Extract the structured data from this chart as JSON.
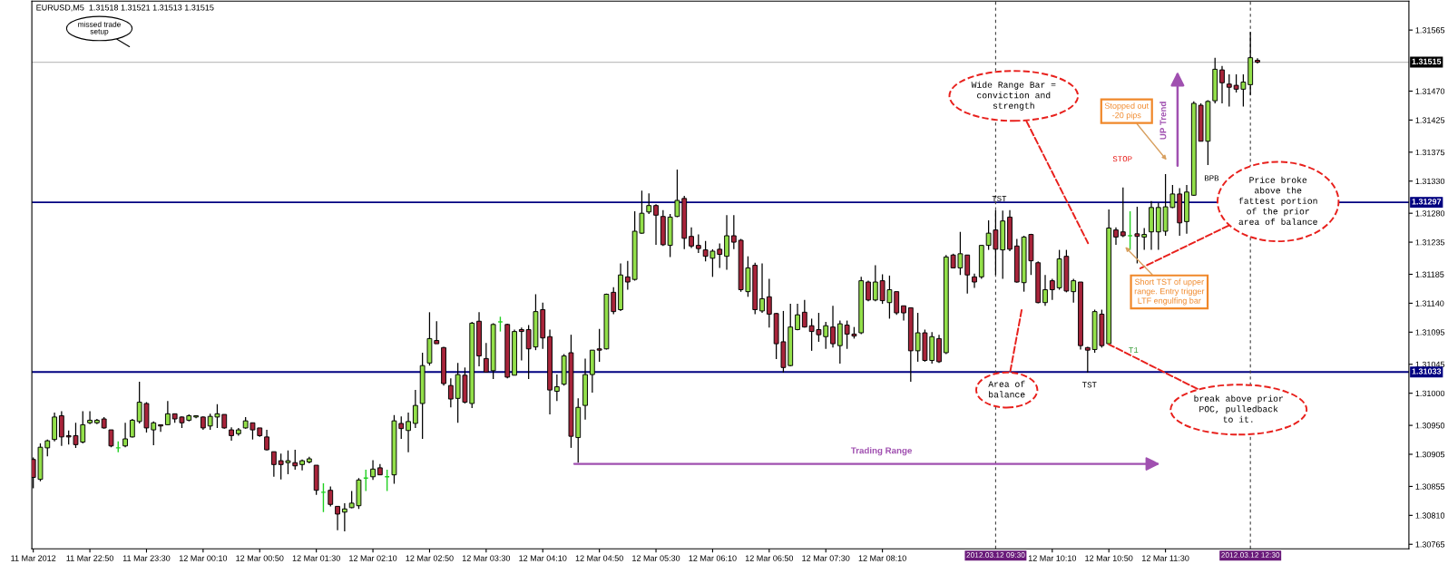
{
  "chart_data": {
    "type": "candlestick",
    "title": "EURUSD,M5  1.31518 1.31521 1.31513 1.31515",
    "x": [
      "2012-03-11T22:10",
      "2012-03-11T22:15",
      "2012-03-11T22:20",
      "2012-03-11T22:25",
      "2012-03-11T22:30",
      "2012-03-11T22:35",
      "2012-03-11T22:40",
      "2012-03-11T22:45",
      "2012-03-11T22:50",
      "2012-03-11T22:55",
      "2012-03-11T23:00",
      "2012-03-11T23:05",
      "2012-03-11T23:10",
      "2012-03-11T23:15",
      "2012-03-11T23:20",
      "2012-03-11T23:25",
      "2012-03-11T23:30",
      "2012-03-11T23:35",
      "2012-03-11T23:40",
      "2012-03-11T23:45",
      "2012-03-11T23:50",
      "2012-03-11T23:55",
      "2012-03-12T00:00",
      "2012-03-12T00:05",
      "2012-03-12T00:10",
      "2012-03-12T00:15",
      "2012-03-12T00:20",
      "2012-03-12T00:25",
      "2012-03-12T00:30",
      "2012-03-12T00:35",
      "2012-03-12T00:40",
      "2012-03-12T00:45",
      "2012-03-12T00:50",
      "2012-03-12T00:55",
      "2012-03-12T01:00",
      "2012-03-12T01:05",
      "2012-03-12T01:10",
      "2012-03-12T01:15",
      "2012-03-12T01:20",
      "2012-03-12T01:25",
      "2012-03-12T01:30",
      "2012-03-12T01:35",
      "2012-03-12T01:40",
      "2012-03-12T01:45",
      "2012-03-12T01:50",
      "2012-03-12T01:55",
      "2012-03-12T02:00",
      "2012-03-12T02:05",
      "2012-03-12T02:10",
      "2012-03-12T02:15",
      "2012-03-12T02:20",
      "2012-03-12T02:25",
      "2012-03-12T02:30",
      "2012-03-12T02:35",
      "2012-03-12T02:40",
      "2012-03-12T02:45",
      "2012-03-12T02:50",
      "2012-03-12T02:55",
      "2012-03-12T03:00",
      "2012-03-12T03:05",
      "2012-03-12T03:10",
      "2012-03-12T03:15",
      "2012-03-12T03:20",
      "2012-03-12T03:25",
      "2012-03-12T03:30",
      "2012-03-12T03:35",
      "2012-03-12T03:40",
      "2012-03-12T03:45",
      "2012-03-12T03:50",
      "2012-03-12T03:55",
      "2012-03-12T04:00",
      "2012-03-12T04:05",
      "2012-03-12T04:10",
      "2012-03-12T04:15",
      "2012-03-12T04:20",
      "2012-03-12T04:25",
      "2012-03-12T04:30",
      "2012-03-12T04:35",
      "2012-03-12T04:40",
      "2012-03-12T04:45",
      "2012-03-12T04:50",
      "2012-03-12T04:55",
      "2012-03-12T05:00",
      "2012-03-12T05:05",
      "2012-03-12T05:10",
      "2012-03-12T05:15",
      "2012-03-12T05:20",
      "2012-03-12T05:25",
      "2012-03-12T05:30",
      "2012-03-12T05:35",
      "2012-03-12T05:40",
      "2012-03-12T05:45",
      "2012-03-12T05:50",
      "2012-03-12T05:55",
      "2012-03-12T06:00",
      "2012-03-12T06:05",
      "2012-03-12T06:10",
      "2012-03-12T06:15",
      "2012-03-12T06:20",
      "2012-03-12T06:25",
      "2012-03-12T06:30",
      "2012-03-12T06:35",
      "2012-03-12T06:40",
      "2012-03-12T06:45",
      "2012-03-12T06:50",
      "2012-03-12T06:55",
      "2012-03-12T07:00",
      "2012-03-12T07:05",
      "2012-03-12T07:10",
      "2012-03-12T07:15",
      "2012-03-12T07:20",
      "2012-03-12T07:25",
      "2012-03-12T07:30",
      "2012-03-12T07:35",
      "2012-03-12T07:40",
      "2012-03-12T07:45",
      "2012-03-12T07:50",
      "2012-03-12T07:55",
      "2012-03-12T08:00",
      "2012-03-12T08:05",
      "2012-03-12T08:10",
      "2012-03-12T08:15",
      "2012-03-12T08:20",
      "2012-03-12T08:25",
      "2012-03-12T08:30",
      "2012-03-12T08:35",
      "2012-03-12T08:40",
      "2012-03-12T08:45",
      "2012-03-12T08:50",
      "2012-03-12T08:55",
      "2012-03-12T09:00",
      "2012-03-12T09:05",
      "2012-03-12T09:10",
      "2012-03-12T09:15",
      "2012-03-12T09:20",
      "2012-03-12T09:25",
      "2012-03-12T09:30",
      "2012-03-12T09:35",
      "2012-03-12T09:40",
      "2012-03-12T09:45",
      "2012-03-12T09:50",
      "2012-03-12T09:55",
      "2012-03-12T10:00",
      "2012-03-12T10:05",
      "2012-03-12T10:10",
      "2012-03-12T10:15",
      "2012-03-12T10:20",
      "2012-03-12T10:25",
      "2012-03-12T10:30",
      "2012-03-12T10:35",
      "2012-03-12T10:40",
      "2012-03-12T10:45",
      "2012-03-12T10:50",
      "2012-03-12T10:55",
      "2012-03-12T11:00",
      "2012-03-12T11:05",
      "2012-03-12T11:10",
      "2012-03-12T11:15",
      "2012-03-12T11:20",
      "2012-03-12T11:25",
      "2012-03-12T11:30",
      "2012-03-12T11:35",
      "2012-03-12T11:40",
      "2012-03-12T11:45",
      "2012-03-12T11:50",
      "2012-03-12T11:55",
      "2012-03-12T12:00",
      "2012-03-12T12:05",
      "2012-03-12T12:10",
      "2012-03-12T12:15",
      "2012-03-12T12:20",
      "2012-03-12T12:25",
      "2012-03-12T12:30",
      "2012-03-12T12:35"
    ],
    "ohlc": [
      [
        1.30897,
        1.309,
        1.30852,
        1.30869
      ],
      [
        1.30866,
        1.30922,
        1.30863,
        1.30916
      ],
      [
        1.30915,
        1.30928,
        1.30902,
        1.30926
      ],
      [
        1.30928,
        1.3097,
        1.30925,
        1.30963
      ],
      [
        1.30965,
        1.30972,
        1.30918,
        1.30932
      ],
      [
        1.30934,
        1.30942,
        1.3092,
        1.30932
      ],
      [
        1.30934,
        1.30954,
        1.30915,
        1.3092
      ],
      [
        1.30924,
        1.30972,
        1.30922,
        1.30951
      ],
      [
        1.30954,
        1.30972,
        1.30952,
        1.30958
      ],
      [
        1.30954,
        1.3096,
        1.30952,
        1.30958
      ],
      [
        1.3096,
        1.30963,
        1.30945,
        1.30946
      ],
      [
        1.30943,
        1.30943,
        1.30916,
        1.30918
      ],
      [
        1.30915,
        1.30925,
        1.30908,
        1.30915
      ],
      [
        1.30918,
        1.30954,
        1.30916,
        1.30929
      ],
      [
        1.30932,
        1.3096,
        1.30931,
        1.30958
      ],
      [
        1.30956,
        1.31018,
        1.30953,
        1.30986
      ],
      [
        1.30984,
        1.30986,
        1.30939,
        1.30946
      ],
      [
        1.30943,
        1.30956,
        1.30919,
        1.30954
      ],
      [
        1.30951,
        1.30951,
        1.3094,
        1.30949
      ],
      [
        1.30951,
        1.30988,
        1.3095,
        1.30968
      ],
      [
        1.30968,
        1.30968,
        1.30954,
        1.3096
      ],
      [
        1.30963,
        1.30964,
        1.30946,
        1.30954
      ],
      [
        1.30958,
        1.30967,
        1.30956,
        1.30965
      ],
      [
        1.30963,
        1.30965,
        1.30961,
        1.30965
      ],
      [
        1.30963,
        1.30964,
        1.30943,
        1.30946
      ],
      [
        1.30949,
        1.30968,
        1.30943,
        1.30964
      ],
      [
        1.30963,
        1.30983,
        1.30946,
        1.30968
      ],
      [
        1.30967,
        1.30967,
        1.30945,
        1.30946
      ],
      [
        1.30943,
        1.30947,
        1.30926,
        1.30934
      ],
      [
        1.30937,
        1.30946,
        1.30934,
        1.30943
      ],
      [
        1.30946,
        1.30963,
        1.30945,
        1.30957
      ],
      [
        1.30954,
        1.30954,
        1.30928,
        1.30943
      ],
      [
        1.30946,
        1.30946,
        1.30932,
        1.30934
      ],
      [
        1.30932,
        1.30943,
        1.30911,
        1.30912
      ],
      [
        1.30909,
        1.30909,
        1.3087,
        1.30889
      ],
      [
        1.30895,
        1.30906,
        1.30866,
        1.30889
      ],
      [
        1.30892,
        1.30911,
        1.30874,
        1.30895
      ],
      [
        1.30892,
        1.30912,
        1.30881,
        1.30887
      ],
      [
        1.30889,
        1.30897,
        1.3088,
        1.30895
      ],
      [
        1.30893,
        1.30901,
        1.30891,
        1.30898
      ],
      [
        1.30888,
        1.30888,
        1.30842,
        1.30849
      ],
      [
        1.30846,
        1.3086,
        1.30815,
        1.30846
      ],
      [
        1.30849,
        1.30855,
        1.30824,
        1.30827
      ],
      [
        1.30824,
        1.30824,
        1.30787,
        1.30812
      ],
      [
        1.30815,
        1.30829,
        1.30785,
        1.3082
      ],
      [
        1.30822,
        1.30848,
        1.30821,
        1.30829
      ],
      [
        1.30825,
        1.30868,
        1.3082,
        1.30865
      ],
      [
        1.30868,
        1.30881,
        1.30848,
        1.30868
      ],
      [
        1.3087,
        1.30896,
        1.30865,
        1.30882
      ],
      [
        1.30884,
        1.3089,
        1.30873,
        1.30873
      ],
      [
        1.3087,
        1.30881,
        1.30848,
        1.3087
      ],
      [
        1.30873,
        1.30966,
        1.30859,
        1.30957
      ],
      [
        1.30953,
        1.30964,
        1.30929,
        1.30945
      ],
      [
        1.30942,
        1.3097,
        1.30908,
        1.30956
      ],
      [
        1.30953,
        1.31005,
        1.30946,
        1.30981
      ],
      [
        1.30984,
        1.31063,
        1.30929,
        1.31043
      ],
      [
        1.31047,
        1.31126,
        1.31043,
        1.31085
      ],
      [
        1.31082,
        1.31112,
        1.31077,
        1.31077
      ],
      [
        1.31071,
        1.31072,
        1.31012,
        1.31015
      ],
      [
        1.31012,
        1.31023,
        1.30978,
        1.30991
      ],
      [
        1.30992,
        1.31047,
        1.30954,
        1.31029
      ],
      [
        1.31028,
        1.3104,
        1.30984,
        1.30986
      ],
      [
        1.30984,
        1.31111,
        1.30977,
        1.31109
      ],
      [
        1.31112,
        1.31126,
        1.31042,
        1.31058
      ],
      [
        1.31054,
        1.31078,
        1.31033,
        1.31033
      ],
      [
        1.31035,
        1.31109,
        1.31022,
        1.31107
      ],
      [
        1.31111,
        1.31119,
        1.31096,
        1.31111
      ],
      [
        1.31107,
        1.31108,
        1.31023,
        1.31025
      ],
      [
        1.31028,
        1.31099,
        1.31028,
        1.31096
      ],
      [
        1.31099,
        1.31102,
        1.31051,
        1.31096
      ],
      [
        1.31099,
        1.31106,
        1.31022,
        1.31069
      ],
      [
        1.31072,
        1.31154,
        1.31067,
        1.31127
      ],
      [
        1.3113,
        1.31141,
        1.31069,
        1.31086
      ],
      [
        1.31088,
        1.31099,
        1.30967,
        1.31005
      ],
      [
        1.31003,
        1.31029,
        1.30988,
        1.3101
      ],
      [
        1.31014,
        1.31061,
        1.31012,
        1.31058
      ],
      [
        1.31063,
        1.31091,
        1.30915,
        1.30933
      ],
      [
        1.30931,
        1.30992,
        1.30892,
        1.30978
      ],
      [
        1.30981,
        1.31054,
        1.30959,
        1.31029
      ],
      [
        1.31029,
        1.31067,
        1.31001,
        1.31067
      ],
      [
        1.31069,
        1.311,
        1.31049,
        1.31067
      ],
      [
        1.31069,
        1.31155,
        1.31068,
        1.31154
      ],
      [
        1.31157,
        1.31165,
        1.31123,
        1.31127
      ],
      [
        1.3113,
        1.31202,
        1.31128,
        1.31184
      ],
      [
        1.31181,
        1.31206,
        1.31161,
        1.31173
      ],
      [
        1.31177,
        1.31283,
        1.31175,
        1.31252
      ],
      [
        1.31249,
        1.31315,
        1.31248,
        1.3128
      ],
      [
        1.31282,
        1.31311,
        1.31279,
        1.31292
      ],
      [
        1.31292,
        1.31294,
        1.31231,
        1.31277
      ],
      [
        1.31275,
        1.31285,
        1.31229,
        1.31231
      ],
      [
        1.3123,
        1.31279,
        1.31212,
        1.31274
      ],
      [
        1.31275,
        1.31348,
        1.31274,
        1.313
      ],
      [
        1.31303,
        1.31307,
        1.31224,
        1.31241
      ],
      [
        1.31244,
        1.31258,
        1.31226,
        1.31229
      ],
      [
        1.3123,
        1.31247,
        1.31218,
        1.31225
      ],
      [
        1.31223,
        1.31237,
        1.31205,
        1.31213
      ],
      [
        1.3121,
        1.31224,
        1.31181,
        1.31221
      ],
      [
        1.31224,
        1.31233,
        1.31195,
        1.31216
      ],
      [
        1.31213,
        1.31277,
        1.31192,
        1.31245
      ],
      [
        1.31245,
        1.31277,
        1.31224,
        1.31235
      ],
      [
        1.31238,
        1.3124,
        1.31158,
        1.31161
      ],
      [
        1.31158,
        1.31213,
        1.3115,
        1.31195
      ],
      [
        1.31199,
        1.31203,
        1.31123,
        1.3113
      ],
      [
        1.31128,
        1.31202,
        1.31125,
        1.31147
      ],
      [
        1.3115,
        1.31178,
        1.31102,
        1.31123
      ],
      [
        1.31124,
        1.31125,
        1.31053,
        1.31077
      ],
      [
        1.3108,
        1.31128,
        1.31032,
        1.3104
      ],
      [
        1.31043,
        1.31139,
        1.31042,
        1.31103
      ],
      [
        1.31099,
        1.31139,
        1.31098,
        1.31122
      ],
      [
        1.31126,
        1.31145,
        1.31102,
        1.31103
      ],
      [
        1.31105,
        1.31116,
        1.31066,
        1.31096
      ],
      [
        1.31099,
        1.31125,
        1.3108,
        1.31091
      ],
      [
        1.31088,
        1.31111,
        1.31069,
        1.31105
      ],
      [
        1.31103,
        1.31136,
        1.31071,
        1.31077
      ],
      [
        1.31074,
        1.31113,
        1.31046,
        1.31108
      ],
      [
        1.31106,
        1.31113,
        1.31069,
        1.31092
      ],
      [
        1.31092,
        1.31103,
        1.31085,
        1.31089
      ],
      [
        1.31094,
        1.31181,
        1.31092,
        1.31175
      ],
      [
        1.31173,
        1.31175,
        1.31143,
        1.31145
      ],
      [
        1.31145,
        1.31199,
        1.31143,
        1.31173
      ],
      [
        1.31175,
        1.31185,
        1.31139,
        1.31144
      ],
      [
        1.31141,
        1.31183,
        1.31116,
        1.31161
      ],
      [
        1.31158,
        1.31158,
        1.31122,
        1.31125
      ],
      [
        1.31136,
        1.31136,
        1.31113,
        1.31125
      ],
      [
        1.31133,
        1.31133,
        1.31018,
        1.31066
      ],
      [
        1.31066,
        1.31125,
        1.31049,
        1.31094
      ],
      [
        1.31094,
        1.31099,
        1.31049,
        1.31051
      ],
      [
        1.31051,
        1.31095,
        1.31046,
        1.31088
      ],
      [
        1.31085,
        1.31091,
        1.31047,
        1.31049
      ],
      [
        1.31063,
        1.31215,
        1.31061,
        1.31212
      ],
      [
        1.31215,
        1.31217,
        1.31195,
        1.31195
      ],
      [
        1.31195,
        1.31251,
        1.31184,
        1.31217
      ],
      [
        1.31215,
        1.31215,
        1.31155,
        1.31184
      ],
      [
        1.31181,
        1.31186,
        1.31164,
        1.31173
      ],
      [
        1.31181,
        1.3123,
        1.31178,
        1.3123
      ],
      [
        1.3123,
        1.31269,
        1.31223,
        1.31249
      ],
      [
        1.31254,
        1.31285,
        1.31184,
        1.31224
      ],
      [
        1.31223,
        1.31284,
        1.31178,
        1.31268
      ],
      [
        1.31274,
        1.31285,
        1.31221,
        1.31224
      ],
      [
        1.31229,
        1.3124,
        1.31172,
        1.31173
      ],
      [
        1.31172,
        1.31245,
        1.31158,
        1.31243
      ],
      [
        1.31247,
        1.31248,
        1.31184,
        1.31206
      ],
      [
        1.31203,
        1.31205,
        1.3114,
        1.31141
      ],
      [
        1.31141,
        1.31184,
        1.31136,
        1.31161
      ],
      [
        1.31175,
        1.31178,
        1.31145,
        1.31161
      ],
      [
        1.31164,
        1.31223,
        1.31161,
        1.31209
      ],
      [
        1.31213,
        1.31223,
        1.31157,
        1.31159
      ],
      [
        1.31158,
        1.31178,
        1.31141,
        1.31175
      ],
      [
        1.31173,
        1.31173,
        1.31068,
        1.31074
      ],
      [
        1.31071,
        1.31072,
        1.31032,
        1.31067
      ],
      [
        1.31068,
        1.3113,
        1.31063,
        1.31127
      ],
      [
        1.31123,
        1.3113,
        1.31071,
        1.31074
      ],
      [
        1.31077,
        1.31286,
        1.31076,
        1.31257
      ],
      [
        1.31254,
        1.31258,
        1.31231,
        1.31243
      ],
      [
        1.31251,
        1.3132,
        1.31243,
        1.31245
      ],
      [
        1.31245,
        1.31283,
        1.31223,
        1.31245
      ],
      [
        1.31248,
        1.3129,
        1.31202,
        1.31244
      ],
      [
        1.31243,
        1.31257,
        1.31223,
        1.31247
      ],
      [
        1.31251,
        1.31299,
        1.31223,
        1.31289
      ],
      [
        1.31251,
        1.31296,
        1.31223,
        1.31289
      ],
      [
        1.31252,
        1.31341,
        1.31245,
        1.3129
      ],
      [
        1.31289,
        1.31324,
        1.31288,
        1.3131
      ],
      [
        1.3131,
        1.31319,
        1.31245,
        1.31265
      ],
      [
        1.31267,
        1.31324,
        1.31248,
        1.31313
      ],
      [
        1.31308,
        1.31454,
        1.31307,
        1.31451
      ],
      [
        1.31448,
        1.31451,
        1.31392,
        1.31392
      ],
      [
        1.31392,
        1.31456,
        1.31355,
        1.31454
      ],
      [
        1.31455,
        1.31522,
        1.31451,
        1.31504
      ],
      [
        1.31503,
        1.31509,
        1.31451,
        1.31483
      ],
      [
        1.31481,
        1.31496,
        1.31446,
        1.31476
      ],
      [
        1.31479,
        1.31496,
        1.31468,
        1.31473
      ],
      [
        1.31473,
        1.31496,
        1.31446,
        1.31484
      ],
      [
        1.3148,
        1.31562,
        1.31464,
        1.31522
      ],
      [
        1.31518,
        1.31521,
        1.31513,
        1.31515
      ]
    ],
    "xlim": [
      "2012-03-11T22:09",
      "2012-03-12T14:22"
    ],
    "xticks": [
      {
        "value": "2012-03-11T22:10",
        "label": "11 Mar 2012"
      },
      {
        "value": "2012-03-11T22:50",
        "label": "11 Mar 22:50"
      },
      {
        "value": "2012-03-11T23:30",
        "label": "11 Mar 23:30"
      },
      {
        "value": "2012-03-12T00:10",
        "label": "12 Mar 00:10"
      },
      {
        "value": "2012-03-12T00:50",
        "label": "12 Mar 00:50"
      },
      {
        "value": "2012-03-12T01:30",
        "label": "12 Mar 01:30"
      },
      {
        "value": "2012-03-12T02:10",
        "label": "12 Mar 02:10"
      },
      {
        "value": "2012-03-12T02:50",
        "label": "12 Mar 02:50"
      },
      {
        "value": "2012-03-12T03:30",
        "label": "12 Mar 03:30"
      },
      {
        "value": "2012-03-12T04:10",
        "label": "12 Mar 04:10"
      },
      {
        "value": "2012-03-12T04:50",
        "label": "12 Mar 04:50"
      },
      {
        "value": "2012-03-12T05:30",
        "label": "12 Mar 05:30"
      },
      {
        "value": "2012-03-12T06:10",
        "label": "12 Mar 06:10"
      },
      {
        "value": "2012-03-12T06:50",
        "label": "12 Mar 06:50"
      },
      {
        "value": "2012-03-12T07:30",
        "label": "12 Mar 07:30"
      },
      {
        "value": "2012-03-12T08:10",
        "label": "12 Mar 08:10"
      },
      {
        "value": "2012-03-12T10:10",
        "label": "12 Mar 10:10"
      },
      {
        "value": "2012-03-12T10:50",
        "label": "12 Mar 10:50"
      },
      {
        "value": "2012-03-12T11:30",
        "label": "12 Mar 11:30"
      }
    ],
    "ylim": [
      1.30758,
      1.3161
    ],
    "yticks": [
      {
        "value": 1.31565,
        "label": "1.31565"
      },
      {
        "value": 1.3147,
        "label": "1.31470"
      },
      {
        "value": 1.31425,
        "label": "1.31425"
      },
      {
        "value": 1.31375,
        "label": "1.31375"
      },
      {
        "value": 1.3133,
        "label": "1.31330"
      },
      {
        "value": 1.3128,
        "label": "1.31280"
      },
      {
        "value": 1.31235,
        "label": "1.31235"
      },
      {
        "value": 1.31185,
        "label": "1.31185"
      },
      {
        "value": 1.3114,
        "label": "1.31140"
      },
      {
        "value": 1.31095,
        "label": "1.31095"
      },
      {
        "value": 1.31045,
        "label": "1.31045"
      },
      {
        "value": 1.31,
        "label": "1.31000"
      },
      {
        "value": 1.3095,
        "label": "1.30950"
      },
      {
        "value": 1.30905,
        "label": "1.30905"
      },
      {
        "value": 1.30855,
        "label": "1.30855"
      },
      {
        "value": 1.3081,
        "label": "1.30810"
      },
      {
        "value": 1.30765,
        "label": "1.30765"
      }
    ],
    "ref_lines": [
      {
        "axis": "y",
        "value": 1.31297,
        "label": "1.31297",
        "color": "#000080"
      },
      {
        "axis": "y",
        "value": 1.31033,
        "label": "1.31033",
        "color": "#000080"
      },
      {
        "axis": "y",
        "value": 1.31515,
        "label": "1.31515",
        "color": "#c0c0c0"
      },
      {
        "axis": "x",
        "value": "2012-03-12T09:30",
        "label": "2012.03.12 09:30",
        "color": "#404040",
        "line_style": "dashed"
      },
      {
        "axis": "x",
        "value": "2012-03-12T12:30",
        "label": "2012.03.12 12:30",
        "color": "#404040",
        "line_style": "dashed"
      }
    ],
    "annotations": [
      "missed trade\nsetup",
      "Wide Range Bar =\nconviction and\nstrength",
      {
        "text": "TST",
        "x": "2012-03-12T09:30",
        "y": 1.31285
      },
      {
        "text": "TST",
        "x": "2012-03-12T10:35",
        "y": 1.31032
      },
      "Area of\nbalance",
      {
        "text": "break above prior\nPOC, pulledback\nto it.",
        "x": "2012-03-12T10:50",
        "y": 1.31076
      },
      "T1",
      "Price broke\nabove the\nfattest portion\nof the prior\narea of balance",
      "Short TST of upper\nrange. Entry trigger\nLTF engulfing bar",
      "Stopped out\n-20 pips",
      "STOP",
      "UP Trend",
      {
        "text": "BPB",
        "x": "2012-03-12T12:00",
        "y": 1.31355
      },
      "Trading Range"
    ]
  }
}
